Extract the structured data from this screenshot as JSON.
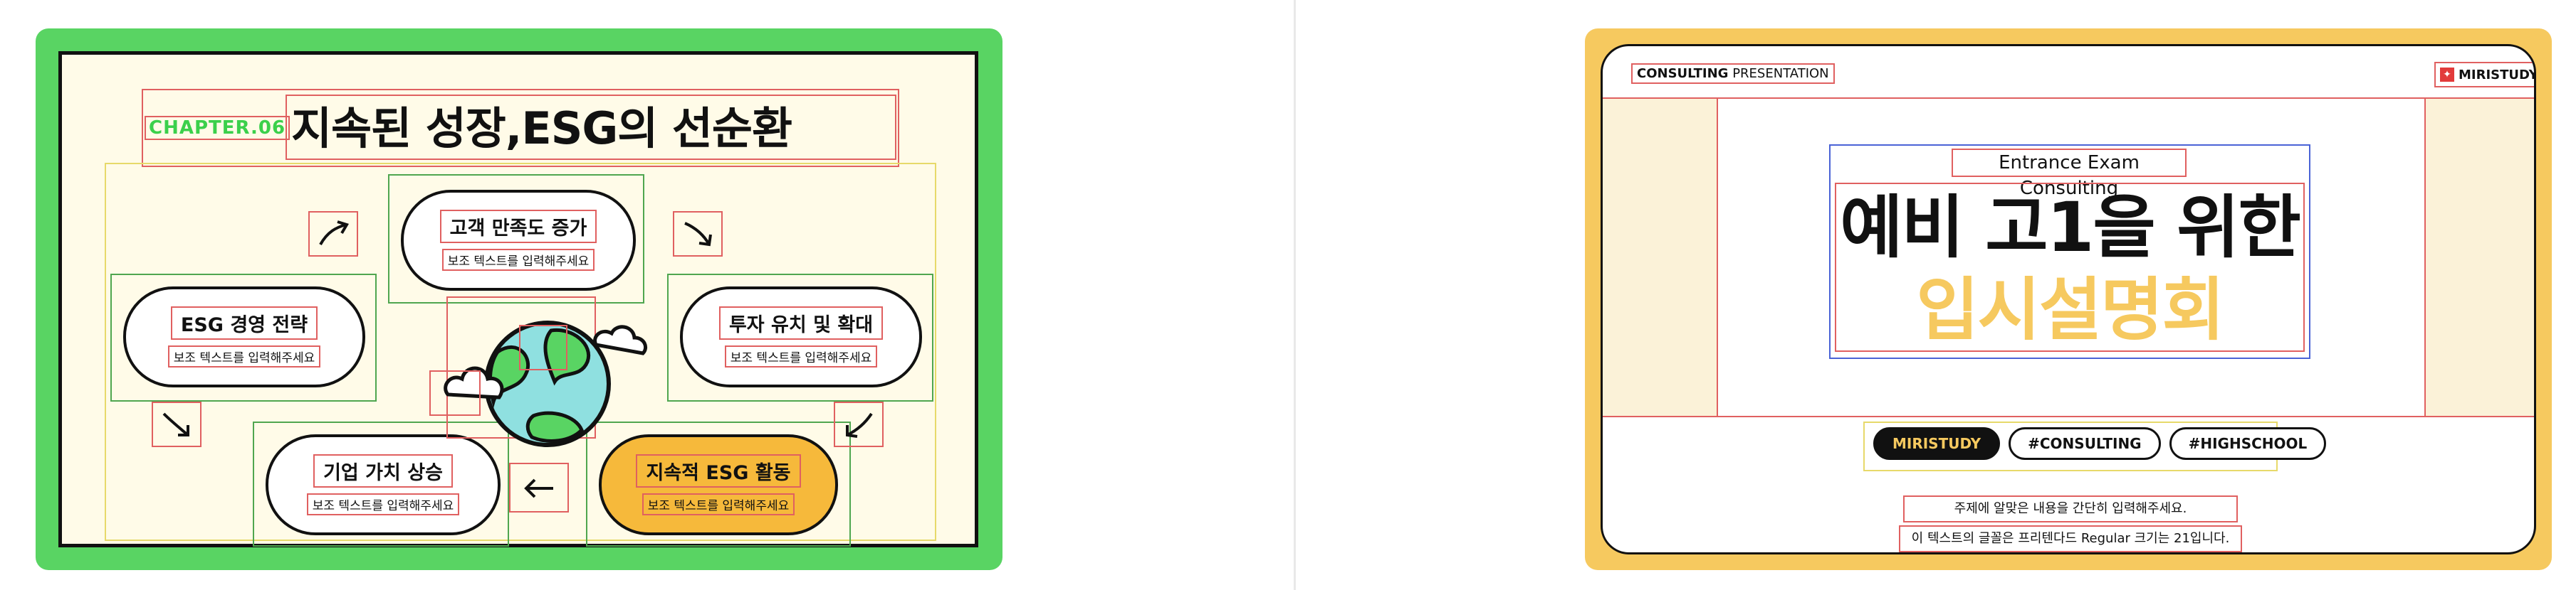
{
  "slide1": {
    "chapter": "CHAPTER.06",
    "title": "지속된 성장,ESG의 선순환",
    "nodes": [
      {
        "title": "고객 만족도 증가",
        "sub": "보조 텍스트를 입력해주세요"
      },
      {
        "title": "ESG 경영 전략",
        "sub": "보조 텍스트를 입력해주세요"
      },
      {
        "title": "투자 유치 및 확대",
        "sub": "보조 텍스트를 입력해주세요"
      },
      {
        "title": "기업 가치 상승",
        "sub": "보조 텍스트를 입력해주세요"
      },
      {
        "title": "지속적 ESG 활동",
        "sub": "보조 텍스트를 입력해주세요"
      }
    ],
    "colors": {
      "frame": "#59d463",
      "background": "#fffbe8",
      "accent": "#f6b93b",
      "globe_water": "#8fe0e0",
      "globe_land": "#59d463"
    }
  },
  "slide2": {
    "top_left_bold": "CONSULTING",
    "top_left_rest": " PRESENTATION",
    "brand": "MIRISTUDY",
    "subtitle": "Entrance Exam Consulting",
    "title_line1": "예비 고1을 위한",
    "title_line2": "입시설명회",
    "tags": [
      "MIRISTUDY",
      "#CONSULTING",
      "#HIGHSCHOOL"
    ],
    "desc_line1": "주제에 알맞은 내용을 간단히 입력해주세요.",
    "desc_line2": "이 텍스트의 글꼴은 프리텐다드 Regular 크기는 21입니다.",
    "colors": {
      "frame": "#f6c95f",
      "accent_text": "#f6c95f"
    }
  }
}
